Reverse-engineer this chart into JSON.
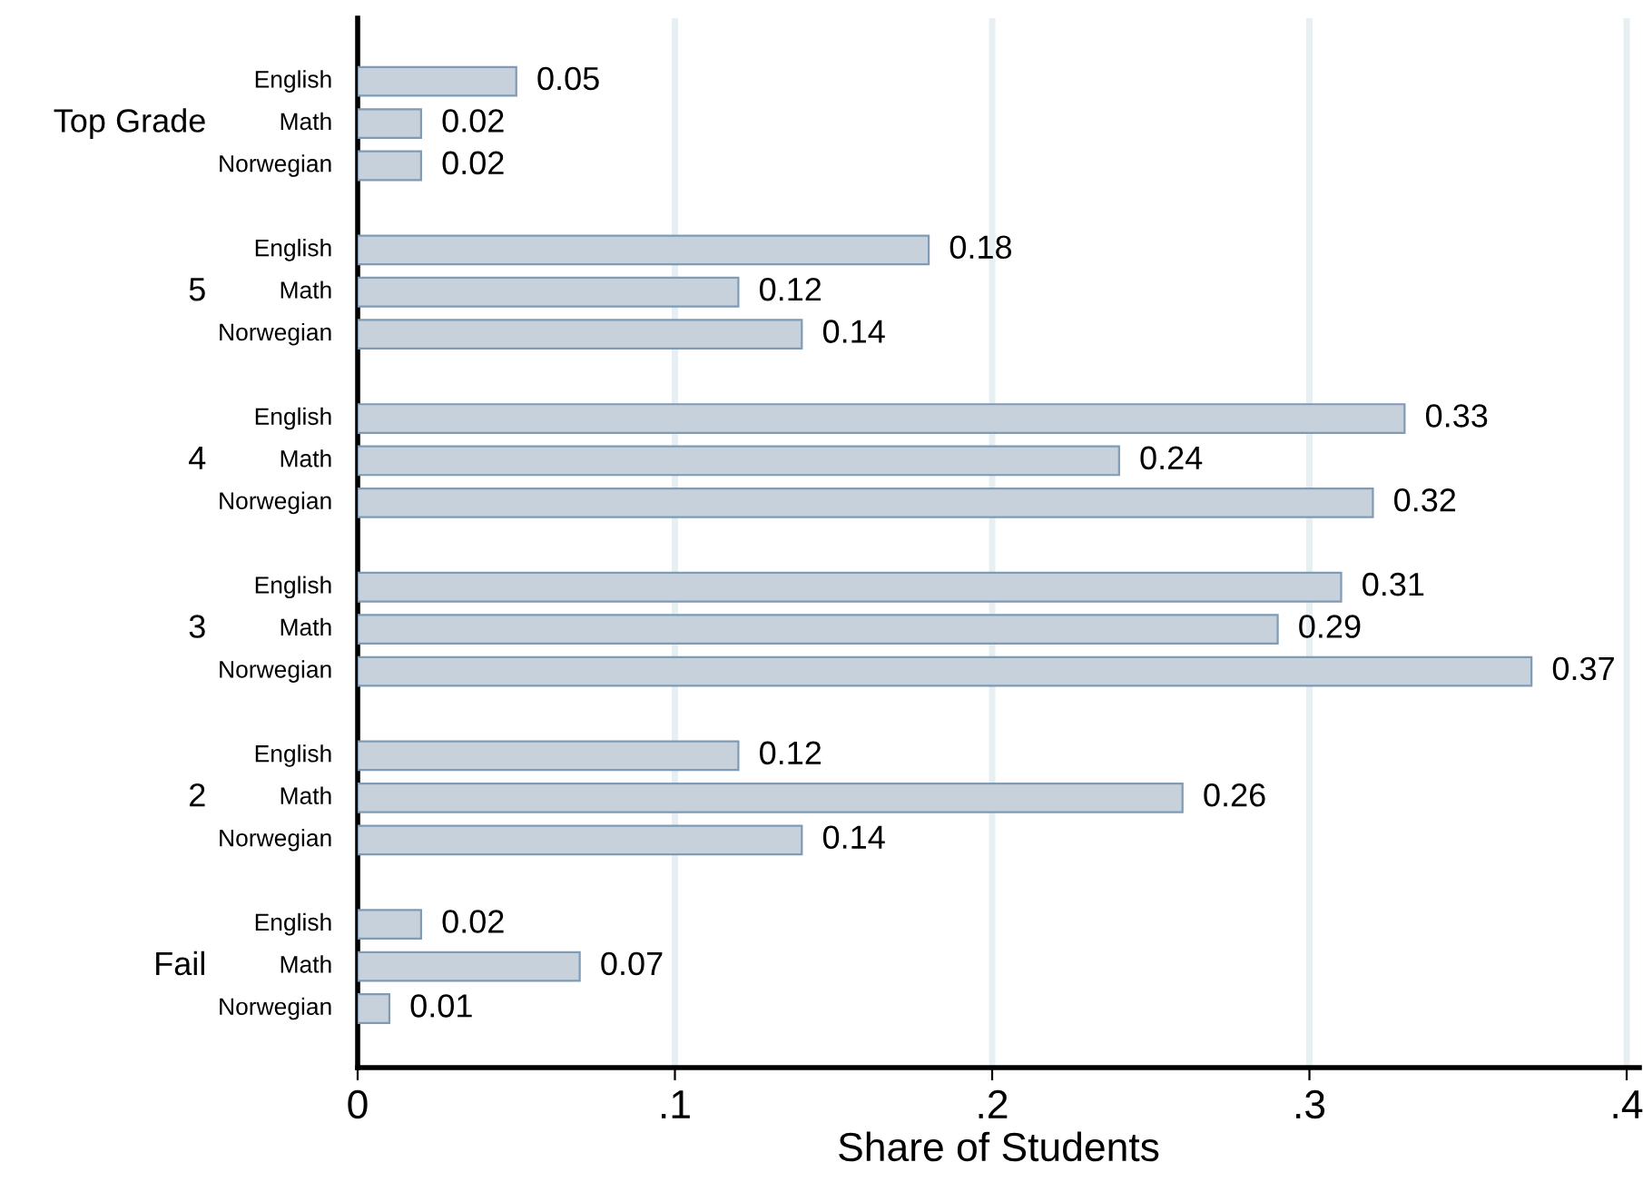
{
  "chart_data": {
    "type": "bar",
    "orientation": "horizontal",
    "xlabel": "Share of Students",
    "categories": [
      "Top Grade",
      "5",
      "4",
      "3",
      "2",
      "Fail"
    ],
    "series": [
      {
        "name": "English",
        "color": "#c7d1dc",
        "values": [
          0.05,
          0.18,
          0.33,
          0.31,
          0.12,
          0.02
        ]
      },
      {
        "name": "Math",
        "color": "#c7d1dc",
        "values": [
          0.02,
          0.12,
          0.24,
          0.29,
          0.26,
          0.07
        ]
      },
      {
        "name": "Norwegian",
        "color": "#c7d1dc",
        "values": [
          0.02,
          0.14,
          0.32,
          0.37,
          0.14,
          0.01
        ]
      }
    ],
    "xlim": [
      0,
      0.404
    ],
    "xticks": [
      0,
      {
        "value": 0.1,
        "label": ".1"
      },
      {
        "value": 0.2,
        "label": ".2"
      },
      {
        "value": 0.3,
        "label": ".3"
      },
      {
        "value": 0.4,
        "label": ".4"
      }
    ],
    "grid": "x",
    "data_labels": true,
    "legend": false
  }
}
